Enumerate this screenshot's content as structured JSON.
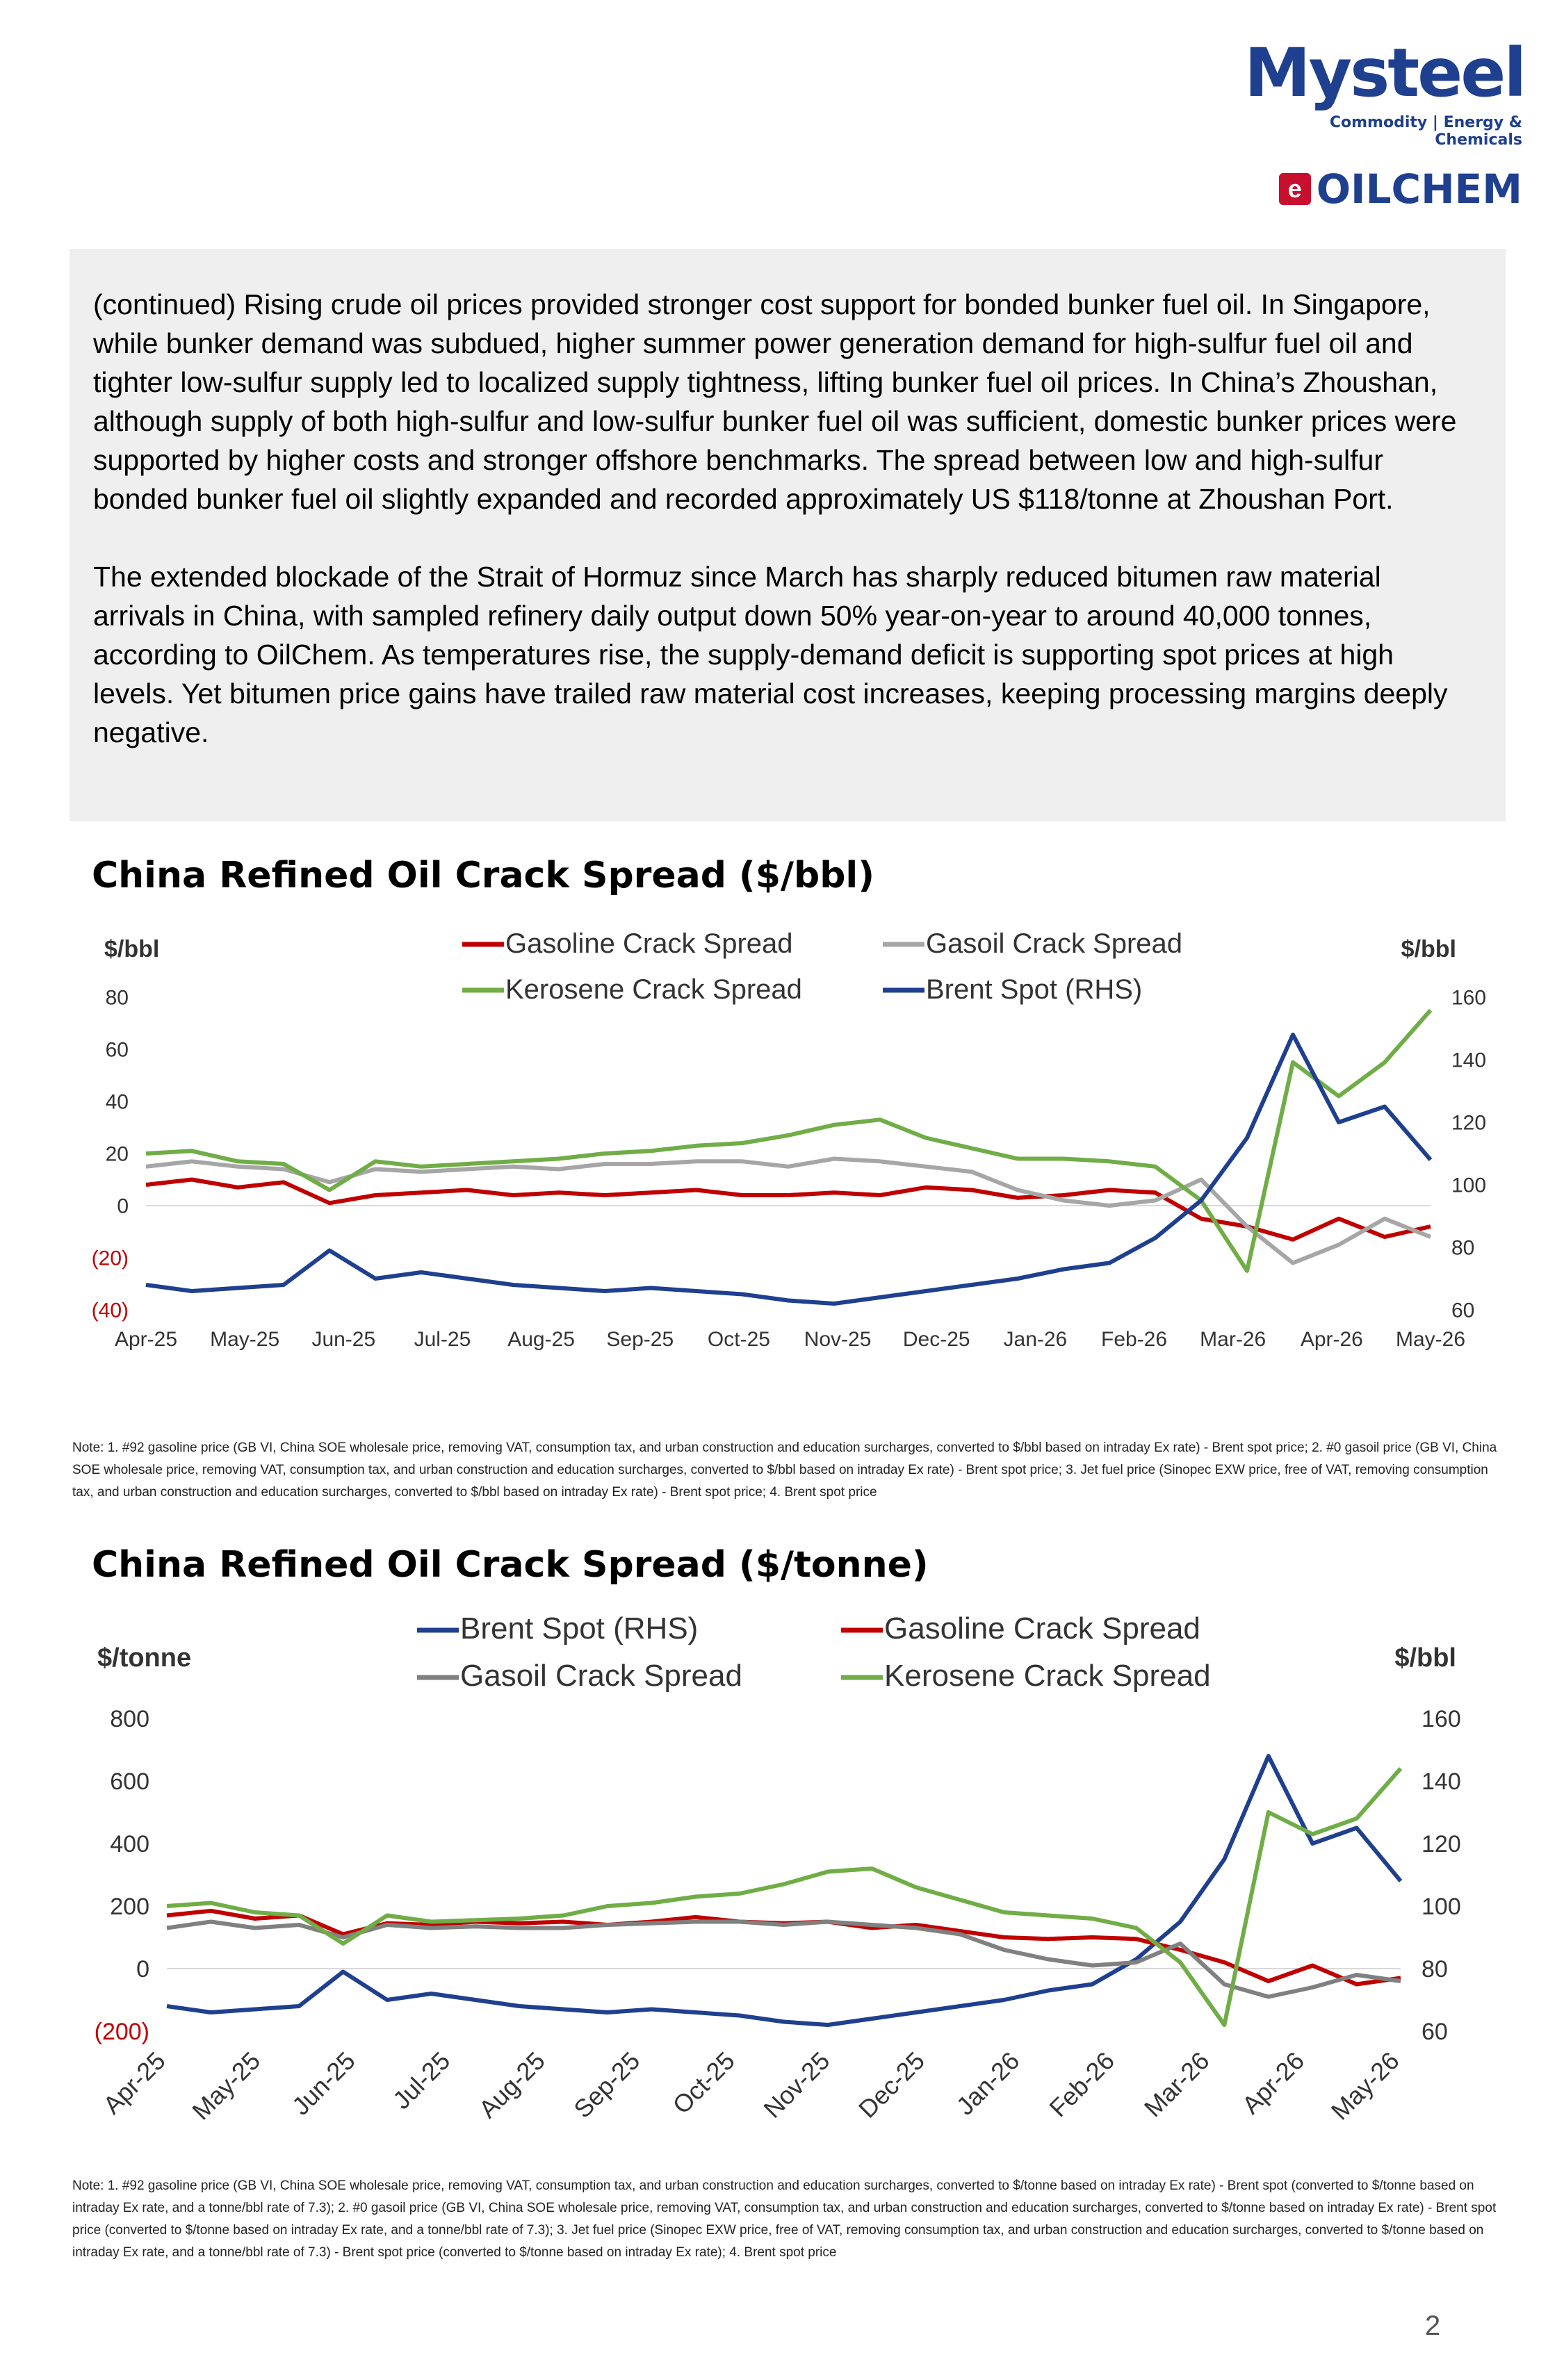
{
  "brand": {
    "name": "Mysteel",
    "tagline": "Commodity | Energy & Chemicals",
    "sub_brand": "OILCHEM",
    "colors": {
      "primary": "#1f3f8f",
      "accent": "#c8102e"
    }
  },
  "text_block": {
    "paragraph_1": "(continued) Rising crude oil prices provided stronger cost support for bonded bunker fuel oil. In Singapore, while bunker demand was subdued, higher summer power generation demand for high-sulfur fuel oil and tighter low-sulfur supply led to localized supply tightness, lifting bunker fuel oil prices. In China’s Zhoushan, although supply of both high-sulfur and low-sulfur bunker fuel oil was sufficient, domestic bunker prices were supported by higher costs and stronger offshore benchmarks. The spread between low and high-sulfur bonded bunker fuel oil slightly expanded and recorded approximately US $118/tonne at Zhoushan Port.",
    "paragraph_2": "The extended blockade of the Strait of Hormuz since March has sharply reduced bitumen raw material arrivals in China, with sampled refinery daily output down 50% year-on-year to around 40,000 tonnes, according to OilChem. As temperatures rise, the supply-demand deficit is supporting spot prices at high levels. Yet bitumen price gains have trailed raw material cost increases, keeping processing margins deeply negative."
  },
  "chart_data": [
    {
      "type": "line",
      "title": "China Refined Oil Crack Spread ($/bbl)",
      "y_left_unit": "$/bbl",
      "y_right_unit": "$/bbl",
      "ylim_left": [
        -40,
        80
      ],
      "ylim_right": [
        60,
        160
      ],
      "y_left_ticks": [
        "80",
        "60",
        "40",
        "20",
        "0",
        "(20)",
        "(40)"
      ],
      "y_right_ticks": [
        "160",
        "140",
        "120",
        "100",
        "80",
        "60"
      ],
      "x_labels": [
        "Apr-25",
        "May-25",
        "Jun-25",
        "Jul-25",
        "Aug-25",
        "Sep-25",
        "Oct-25",
        "Nov-25",
        "Dec-25",
        "Jan-26",
        "Feb-26",
        "Mar-26",
        "Apr-26",
        "May-26"
      ],
      "grid": false,
      "legend": "top",
      "series": [
        {
          "name": "Gasoline Crack Spread",
          "axis": "left",
          "color": "#c00000",
          "values": [
            8,
            10,
            7,
            9,
            1,
            4,
            5,
            6,
            4,
            5,
            4,
            5,
            6,
            4,
            4,
            5,
            4,
            7,
            6,
            3,
            4,
            6,
            5,
            -5,
            -8,
            -13,
            -5,
            -12,
            -8
          ]
        },
        {
          "name": "Gasoil Crack Spread",
          "axis": "left",
          "color": "#a6a6a6",
          "values": [
            15,
            17,
            15,
            14,
            9,
            14,
            13,
            14,
            15,
            14,
            16,
            16,
            17,
            17,
            15,
            18,
            17,
            15,
            13,
            6,
            2,
            0,
            2,
            10,
            -8,
            -22,
            -15,
            -5,
            -12
          ]
        },
        {
          "name": "Kerosene Crack Spread",
          "axis": "left",
          "color": "#70ad47",
          "values": [
            20,
            21,
            17,
            16,
            6,
            17,
            15,
            16,
            17,
            18,
            20,
            21,
            23,
            24,
            27,
            31,
            33,
            26,
            22,
            18,
            18,
            17,
            15,
            2,
            -25,
            55,
            42,
            55,
            75
          ]
        },
        {
          "name": "Brent Spot (RHS)",
          "axis": "right",
          "color": "#1f3f8f",
          "values": [
            68,
            66,
            67,
            68,
            79,
            70,
            72,
            70,
            68,
            67,
            66,
            67,
            66,
            65,
            63,
            62,
            64,
            66,
            68,
            70,
            73,
            75,
            83,
            95,
            115,
            148,
            120,
            125,
            108
          ]
        }
      ]
    },
    {
      "type": "line",
      "title": "China Refined Oil Crack Spread ($/tonne)",
      "y_left_unit": "$/tonne",
      "y_right_unit": "$/bbl",
      "ylim_left": [
        -200,
        800
      ],
      "ylim_right": [
        60,
        160
      ],
      "y_left_ticks": [
        "800",
        "600",
        "400",
        "200",
        "0",
        "(200)"
      ],
      "y_right_ticks": [
        "160",
        "140",
        "120",
        "100",
        "80",
        "60"
      ],
      "x_labels": [
        "Apr-25",
        "May-25",
        "Jun-25",
        "Jul-25",
        "Aug-25",
        "Sep-25",
        "Oct-25",
        "Nov-25",
        "Dec-25",
        "Jan-26",
        "Feb-26",
        "Mar-26",
        "Apr-26",
        "May-26"
      ],
      "grid": false,
      "legend": "top",
      "series": [
        {
          "name": "Brent Spot (RHS)",
          "axis": "right",
          "color": "#1f3f8f",
          "values": [
            68,
            66,
            67,
            68,
            79,
            70,
            72,
            70,
            68,
            67,
            66,
            67,
            66,
            65,
            63,
            62,
            64,
            66,
            68,
            70,
            73,
            75,
            83,
            95,
            115,
            148,
            120,
            125,
            108
          ]
        },
        {
          "name": "Gasoline Crack Spread",
          "axis": "left",
          "color": "#c00000",
          "values": [
            170,
            185,
            160,
            170,
            110,
            145,
            140,
            150,
            145,
            150,
            140,
            150,
            165,
            150,
            145,
            150,
            130,
            140,
            120,
            100,
            95,
            100,
            95,
            60,
            20,
            -40,
            10,
            -50,
            -30
          ]
        },
        {
          "name": "Gasoil Crack Spread",
          "axis": "left",
          "color": "#808080",
          "values": [
            130,
            150,
            130,
            140,
            100,
            140,
            130,
            135,
            130,
            130,
            140,
            145,
            150,
            150,
            140,
            150,
            140,
            130,
            110,
            60,
            30,
            10,
            20,
            80,
            -50,
            -90,
            -60,
            -20,
            -40
          ]
        },
        {
          "name": "Kerosene Crack Spread",
          "axis": "left",
          "color": "#70ad47",
          "values": [
            200,
            210,
            180,
            170,
            80,
            170,
            150,
            155,
            160,
            170,
            200,
            210,
            230,
            240,
            270,
            310,
            320,
            260,
            220,
            180,
            170,
            160,
            130,
            20,
            -180,
            500,
            430,
            480,
            640
          ]
        }
      ]
    }
  ],
  "notes": {
    "chart1": "Note: 1. #92 gasoline price (GB VI, China SOE wholesale price, removing VAT, consumption tax, and urban construction and education surcharges, converted to $/bbl based on intraday Ex rate) - Brent spot price; 2. #0 gasoil price (GB VI, China SOE wholesale price, removing VAT, consumption tax, and urban construction and education surcharges, converted to $/bbl based on intraday Ex rate) - Brent spot price; 3. Jet fuel price (Sinopec EXW price, free of VAT, removing consumption tax, and urban construction and education surcharges, converted to $/bbl based on intraday Ex rate) - Brent spot price; 4. Brent spot price",
    "chart2": "Note: 1. #92 gasoline price (GB VI, China SOE wholesale price, removing VAT, consumption tax, and urban construction and education surcharges, converted to $/tonne based on intraday Ex rate) - Brent spot (converted to $/tonne based on intraday Ex rate, and a tonne/bbl rate of 7.3); 2. #0 gasoil price (GB VI, China SOE wholesale price, removing VAT, consumption tax, and urban construction and education surcharges, converted to $/tonne based on intraday Ex rate) - Brent spot price (converted to $/tonne based on intraday Ex rate, and a tonne/bbl rate of 7.3); 3. Jet fuel price (Sinopec EXW price, free of VAT, removing consumption tax, and urban construction and education surcharges, converted to $/tonne based on intraday Ex rate, and a tonne/bbl rate of 7.3) - Brent spot price (converted to $/tonne based on intraday Ex rate); 4. Brent spot price"
  },
  "page_number": "2"
}
